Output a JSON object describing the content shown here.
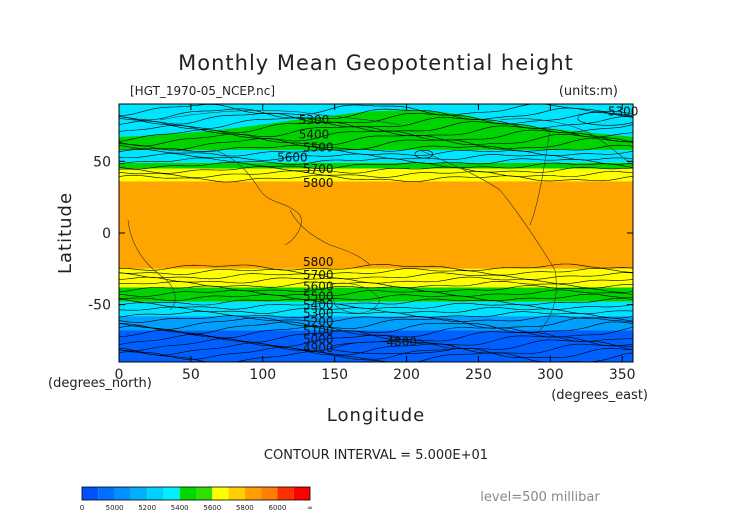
{
  "chart_data": {
    "type": "contour",
    "title": "Monthly Mean Geopotential height",
    "source_label": "[HGT_1970-05_NCEP.nc]",
    "units_label": "(units:m)",
    "xlabel": "Longitude",
    "ylabel": "Latitude",
    "x_unit_label": "(degrees_east)",
    "y_unit_label": "(degrees_north)",
    "xlim": [
      0,
      357.5
    ],
    "ylim": [
      -90,
      90
    ],
    "x_ticks": [
      0,
      50,
      100,
      150,
      200,
      250,
      300,
      350
    ],
    "y_ticks": [
      50,
      0,
      -50
    ],
    "contour_interval_label": "CONTOUR INTERVAL = 5.000E+01",
    "level_label": "level=500 millibar",
    "contour_interval": 50,
    "bands": [
      {
        "lat_from": 90,
        "lat_to": 67,
        "color": "#00e5ff"
      },
      {
        "lat_from": 67,
        "lat_to": 58,
        "color": "#00d400"
      },
      {
        "lat_from": 58,
        "lat_to": 49,
        "color": "#00e5ff"
      },
      {
        "lat_from": 49,
        "lat_to": 45,
        "color": "#00d400"
      },
      {
        "lat_from": 45,
        "lat_to": 36,
        "color": "#ffff00"
      },
      {
        "lat_from": 36,
        "lat_to": -25,
        "color": "#ffa500"
      },
      {
        "lat_from": -25,
        "lat_to": -38,
        "color": "#ffff00"
      },
      {
        "lat_from": -38,
        "lat_to": -48,
        "color": "#00d400"
      },
      {
        "lat_from": -48,
        "lat_to": -58,
        "color": "#00e5ff"
      },
      {
        "lat_from": -58,
        "lat_to": -68,
        "color": "#00a0ff"
      },
      {
        "lat_from": -68,
        "lat_to": -90,
        "color": "#0060ff"
      }
    ],
    "contour_labels": [
      {
        "text": "5300",
        "lon": 125,
        "lat": 76
      },
      {
        "text": "5400",
        "lon": 125,
        "lat": 66
      },
      {
        "text": "5500",
        "lon": 128,
        "lat": 57
      },
      {
        "text": "5600",
        "lon": 110,
        "lat": 50
      },
      {
        "text": "5700",
        "lon": 128,
        "lat": 42
      },
      {
        "text": "5800",
        "lon": 128,
        "lat": 32
      },
      {
        "text": "5300",
        "lon": 340,
        "lat": 82
      },
      {
        "text": "5800",
        "lon": 128,
        "lat": -23
      },
      {
        "text": "5700",
        "lon": 128,
        "lat": -32
      },
      {
        "text": "5600",
        "lon": 128,
        "lat": -40
      },
      {
        "text": "5500",
        "lon": 128,
        "lat": -47
      },
      {
        "text": "5400",
        "lon": 128,
        "lat": -53
      },
      {
        "text": "5300",
        "lon": 128,
        "lat": -59
      },
      {
        "text": "5200",
        "lon": 128,
        "lat": -65
      },
      {
        "text": "5100",
        "lon": 128,
        "lat": -71
      },
      {
        "text": "5000",
        "lon": 128,
        "lat": -77
      },
      {
        "text": "4900",
        "lon": 128,
        "lat": -83
      },
      {
        "text": "4800",
        "lon": 186,
        "lat": -79
      }
    ],
    "colorbar": {
      "colors": [
        "#0050ff",
        "#0070ff",
        "#0090ff",
        "#00b0ff",
        "#00d0ff",
        "#00f0ff",
        "#00d800",
        "#30e000",
        "#ffff00",
        "#ffd000",
        "#ffa000",
        "#ff8000",
        "#ff3000",
        "#ff0000"
      ],
      "tick_labels": [
        "0",
        "5000",
        "5200",
        "5400",
        "5600",
        "5800",
        "6000",
        "∞"
      ]
    }
  }
}
